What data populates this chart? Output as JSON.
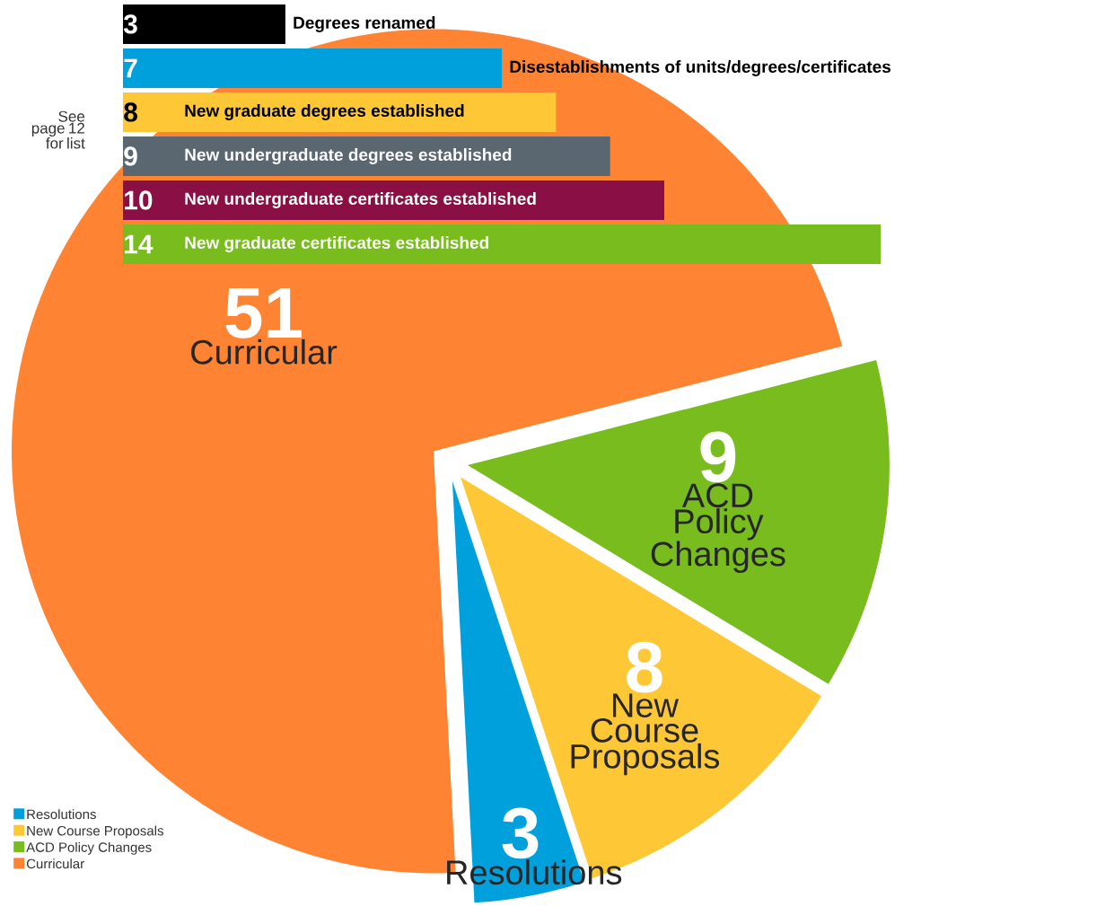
{
  "chart_data": [
    {
      "type": "bar",
      "orientation": "horizontal",
      "categories": [
        "Degrees renamed",
        "Disestablishments of units/degrees/certificates",
        "New graduate degrees established",
        "New undergraduate degrees established",
        "New undergraduate certificates established",
        "New graduate certificates established"
      ],
      "values": [
        3,
        7,
        8,
        9,
        10,
        14
      ],
      "colors": [
        "#000000",
        "#00a0dc",
        "#fdc735",
        "#5b6770",
        "#8a0f45",
        "#78bc1e"
      ],
      "data_labels": true,
      "annotations": [
        "See page 12 for list"
      ]
    },
    {
      "type": "pie",
      "categories": [
        "Resolutions",
        "New Course Proposals",
        "ACD Policy Changes",
        "Curricular"
      ],
      "values": [
        3,
        8,
        9,
        51
      ],
      "colors": [
        "#00a0dc",
        "#fdc735",
        "#78bc1e",
        "#fe8433"
      ],
      "data_labels": true,
      "legend": "bottom left"
    }
  ]
}
